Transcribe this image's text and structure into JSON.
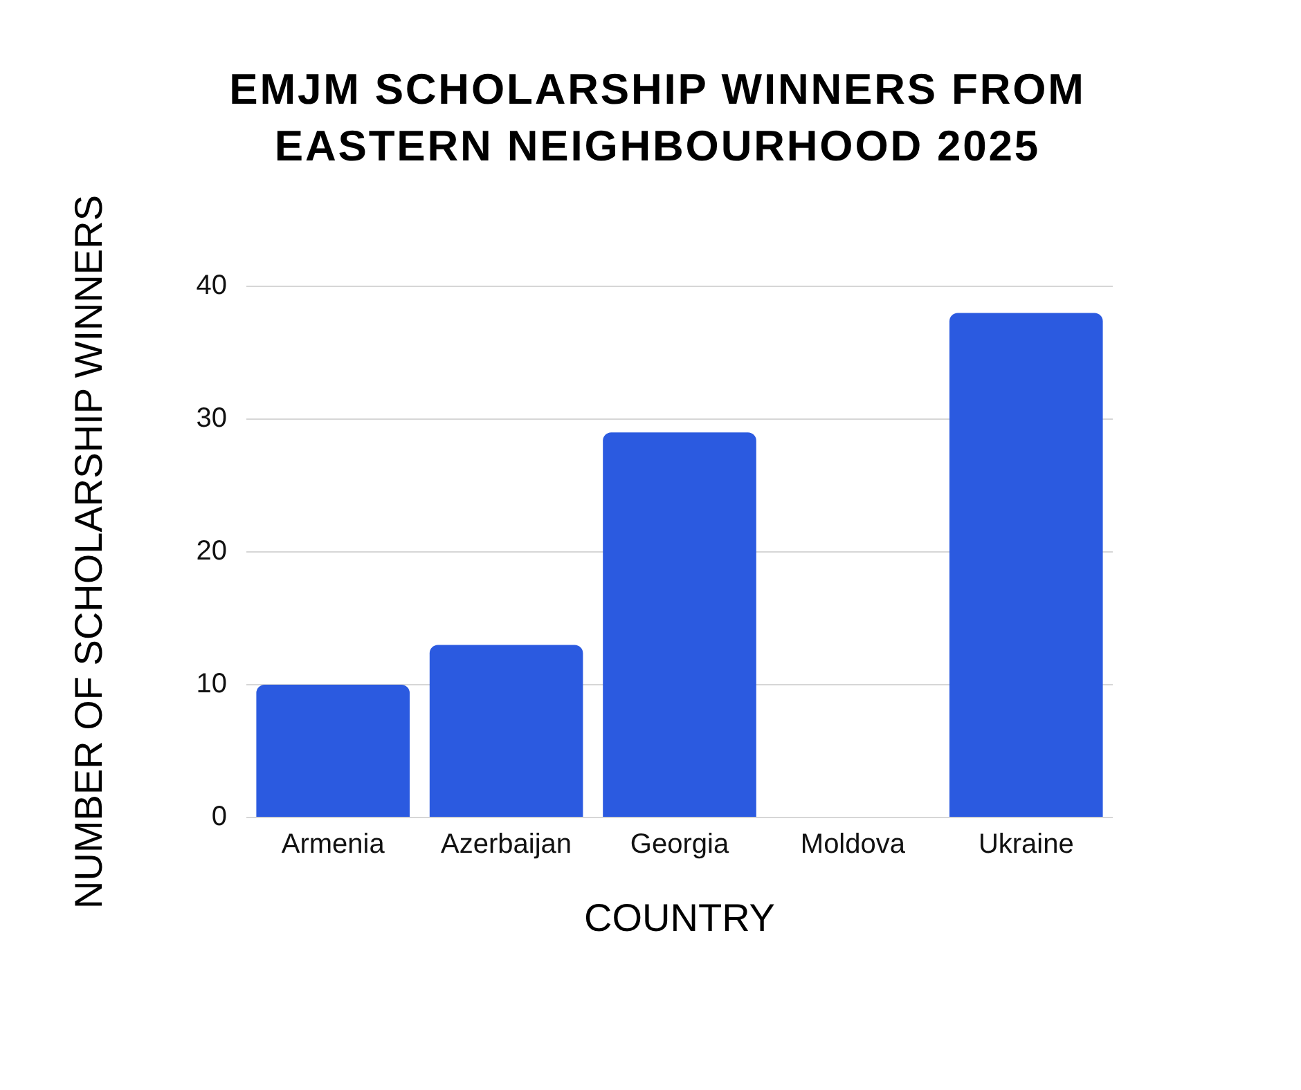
{
  "chart_data": {
    "type": "bar",
    "title": "EMJM SCHOLARSHIP WINNERS FROM EASTERN NEIGHBOURHOOD 2025",
    "xlabel": "COUNTRY",
    "ylabel": "NUMBER OF SCHOLARSHIP WINNERS",
    "categories": [
      "Armenia",
      "Azerbaijan",
      "Georgia",
      "Moldova",
      "Ukraine"
    ],
    "values": [
      10,
      13,
      29,
      0,
      38
    ],
    "color": "#2b5ae0",
    "ylim": [
      0,
      40
    ],
    "yticks": [
      0,
      10,
      20,
      30,
      40
    ],
    "grid": "y"
  }
}
